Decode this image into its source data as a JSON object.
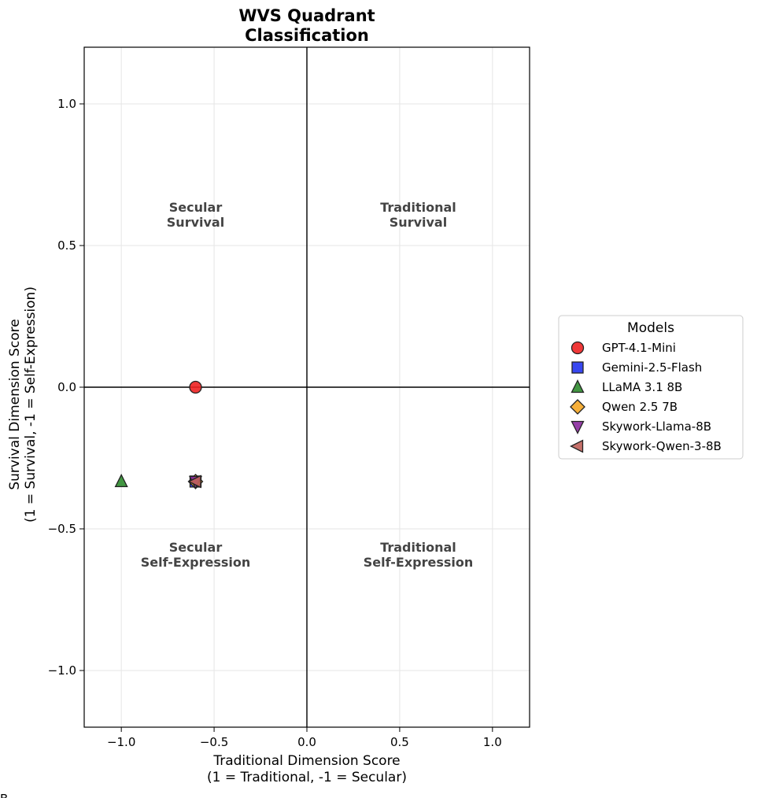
{
  "chart_data": {
    "type": "scatter",
    "title": [
      "WVS Quadrant",
      "Classification"
    ],
    "xlabel": [
      "Traditional Dimension Score",
      "(1 = Traditional, -1 = Secular)"
    ],
    "ylabel": [
      "Survival Dimension Score",
      "(1 = Survival, -1 = Self-Expression)"
    ],
    "xlim": [
      -1.2,
      1.2
    ],
    "ylim": [
      -1.2,
      1.2
    ],
    "xticks": [
      -1.0,
      -0.5,
      0.0,
      0.5,
      1.0
    ],
    "yticks": [
      -1.0,
      -0.5,
      0.0,
      0.5,
      1.0
    ],
    "xtick_labels": [
      "−1.0",
      "−0.5",
      "0.0",
      "0.5",
      "1.0"
    ],
    "ytick_labels": [
      "−1.0",
      "−0.5",
      "0.0",
      "0.5",
      "1.0"
    ],
    "grid": true,
    "reference_lines": {
      "x": 0,
      "y": 0
    },
    "quadrant_labels": [
      {
        "lines": [
          "Secular",
          "Survival"
        ],
        "x": -0.6,
        "y": 0.6
      },
      {
        "lines": [
          "Traditional",
          "Survival"
        ],
        "x": 0.6,
        "y": 0.6
      },
      {
        "lines": [
          "Secular",
          "Self-Expression"
        ],
        "x": -0.6,
        "y": -0.6
      },
      {
        "lines": [
          "Traditional",
          "Self-Expression"
        ],
        "x": 0.6,
        "y": -0.6
      }
    ],
    "legend": {
      "title": "Models",
      "placement": "center-right outside"
    },
    "series": [
      {
        "name": "GPT-4.1-Mini",
        "marker": "circle",
        "color": "#ee2222",
        "x": -0.6,
        "y": 0.0
      },
      {
        "name": "Gemini-2.5-Flash",
        "marker": "square",
        "color": "#2233ee",
        "x": -0.6,
        "y": -0.333
      },
      {
        "name": "LLaMA 3.1 8B",
        "marker": "triangle-up",
        "color": "#2e8b2e",
        "x": -1.0,
        "y": -0.333
      },
      {
        "name": "Qwen 2.5 7B",
        "marker": "diamond",
        "color": "#f5a623",
        "x": -0.6,
        "y": -0.333
      },
      {
        "name": "Skywork-Llama-8B",
        "marker": "triangle-down",
        "color": "#8b2a9e",
        "x": -0.6,
        "y": -0.333
      },
      {
        "name": "Skywork-Qwen-3-8B",
        "marker": "triangle-left",
        "color": "#c0605a",
        "x": -0.6,
        "y": -0.333
      }
    ]
  },
  "corner_mark": "B"
}
